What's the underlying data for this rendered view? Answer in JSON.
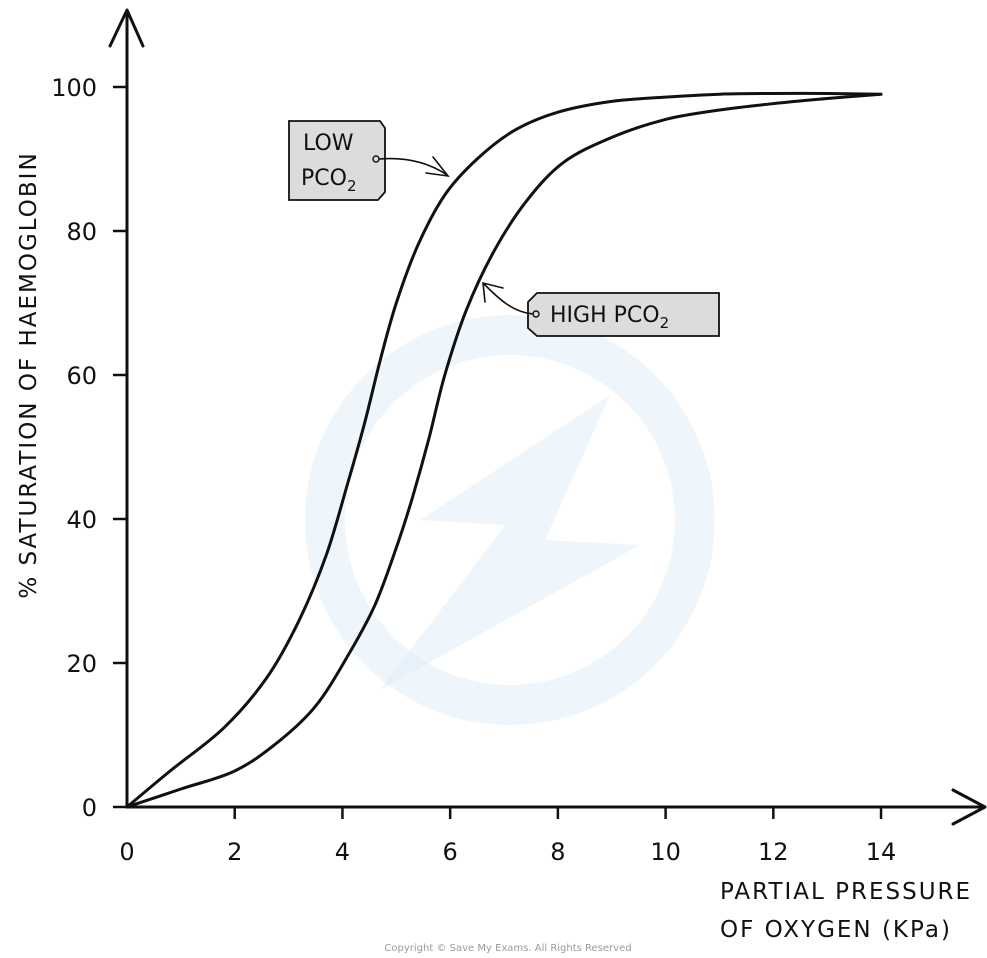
{
  "chart_data": {
    "type": "line",
    "ylabel": "% SATURATION OF HAEMOGLOBIN",
    "xlabel_line1": "PARTIAL PRESSURE",
    "xlabel_line2": "OF OXYGEN (KPa)",
    "xlim": [
      0,
      15.5
    ],
    "ylim": [
      0,
      110
    ],
    "x_ticks": [
      0,
      2,
      4,
      6,
      8,
      10,
      12,
      14
    ],
    "y_ticks": [
      0,
      20,
      40,
      60,
      80,
      100
    ],
    "grid": false,
    "series": [
      {
        "name": "LOW PCO2",
        "x": [
          0,
          0.8,
          1.8,
          2.6,
          3.2,
          3.7,
          4.1,
          4.4,
          4.7,
          5.0,
          5.4,
          5.9,
          6.5,
          7.2,
          8.0,
          9.0,
          10.0,
          11.0,
          12.0,
          13.0,
          14.0
        ],
        "y": [
          0,
          5,
          11,
          18,
          26,
          35,
          45,
          53,
          62,
          70,
          78,
          85,
          90,
          94,
          96.5,
          98,
          98.6,
          99,
          99.1,
          99.1,
          99
        ]
      },
      {
        "name": "HIGH PCO2",
        "x": [
          0,
          1.0,
          2.0,
          2.8,
          3.5,
          4.1,
          4.6,
          5.0,
          5.3,
          5.6,
          5.9,
          6.3,
          6.8,
          7.4,
          8.1,
          9.0,
          10.0,
          11.0,
          12.0,
          13.0,
          14.0
        ],
        "y": [
          0,
          2.5,
          5,
          9,
          14,
          21,
          28,
          36,
          43,
          51,
          60,
          69,
          77,
          84,
          89.5,
          93,
          95.5,
          96.8,
          97.7,
          98.4,
          99
        ]
      }
    ],
    "annotations": {
      "low": {
        "line1": "LOW",
        "line2_main": "PCO",
        "line2_sub": "2"
      },
      "high": {
        "main": "HIGH  PCO",
        "sub": "2"
      }
    }
  },
  "copyright": "Copyright © Save My Exams. All Rights Reserved"
}
